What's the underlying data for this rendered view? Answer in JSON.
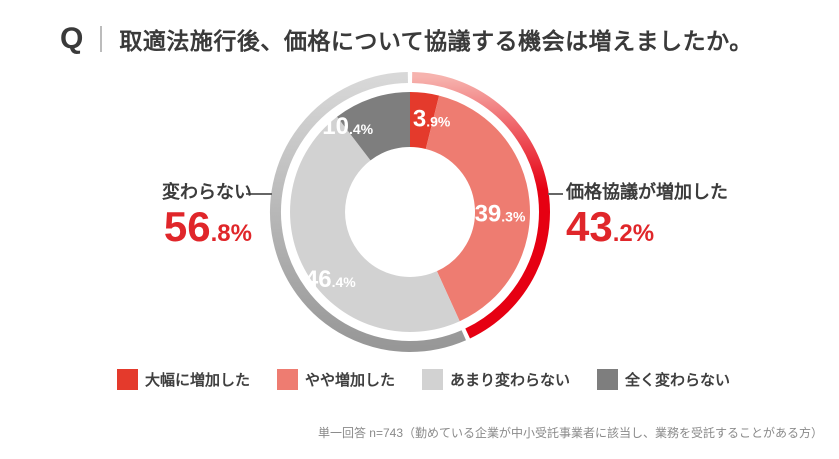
{
  "header": {
    "q_mark": "Q",
    "title": "取適法施行後、価格について協議する機会は増えましたか。"
  },
  "chart_data": {
    "type": "pie",
    "subtype": "donut",
    "title": "取適法施行後、価格について協議する機会は増えましたか。",
    "unit": "%",
    "segments": [
      {
        "label": "大幅に増加した",
        "value": 3.9,
        "color": "#e43a2c",
        "label_angle": 13,
        "label_radius": 96
      },
      {
        "label": "やや増加した",
        "value": 39.3,
        "color": "#ee7c71",
        "label_angle": 91,
        "label_radius": 90
      },
      {
        "label": "あまり変わらない",
        "value": 46.4,
        "color": "#d2d2d2",
        "label_angle": 230,
        "label_radius": 104
      },
      {
        "label": "全く変わらない",
        "value": 10.4,
        "color": "#7e7e7e",
        "label_angle": 324,
        "label_radius": 106
      }
    ],
    "callouts": {
      "left": {
        "label": "変わらない",
        "value": "56.8",
        "color": "#e0262a"
      },
      "right": {
        "label": "価格協議が増加した",
        "value": "43.2",
        "color": "#e0262a"
      }
    },
    "outer_ring": [
      {
        "from_pct": 0,
        "to_pct": 43.2,
        "gradient": "accent"
      },
      {
        "from_pct": 43.2,
        "to_pct": 100,
        "gradient": "neutral"
      }
    ],
    "accent_color": "#e60012",
    "legend_position": "bottom",
    "start_angle_deg": 0,
    "direction": "clockwise"
  },
  "footnote": "単一回答 n=743（勤めている企業が中小受託事業者に該当し、業務を受託することがある方）"
}
